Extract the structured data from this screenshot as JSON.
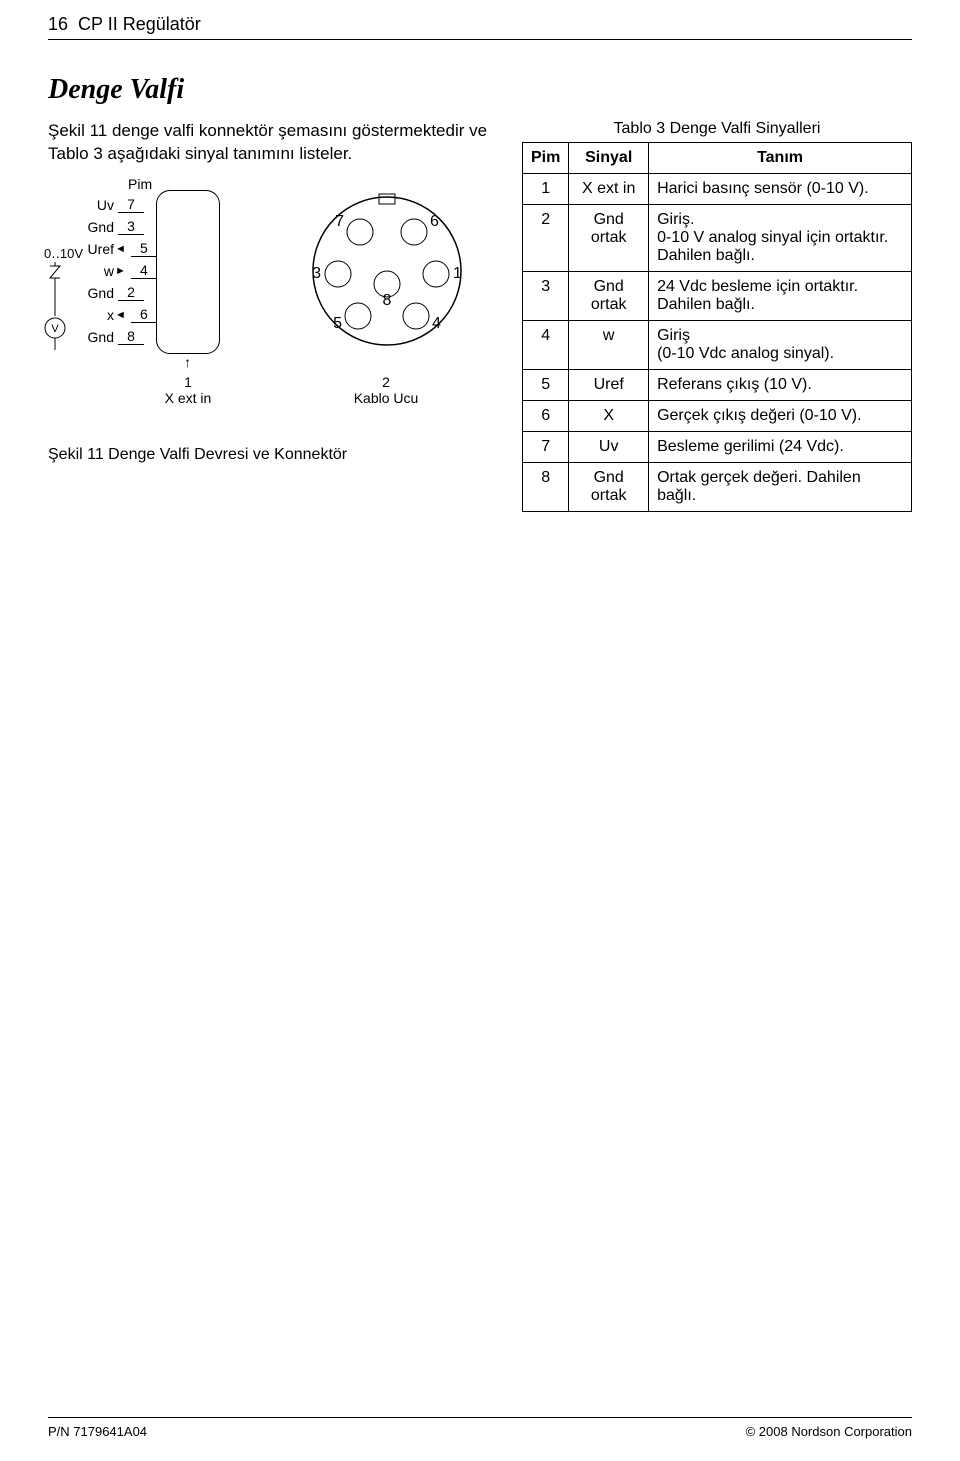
{
  "page": {
    "number": "16",
    "title": "CP II Regülatör"
  },
  "section": {
    "title": "Denge Valfi"
  },
  "intro": "Şekil 11 denge valfi konnektör şemasını göstermektedir ve Tablo 3 aşağıdaki sinyal tanımını listeler.",
  "diagram": {
    "pin_label": "Pim",
    "signals": [
      {
        "name": "Uv",
        "pin": "7"
      },
      {
        "name": "Gnd",
        "pin": "3"
      },
      {
        "name": "Uref",
        "pin": "5"
      },
      {
        "name": "w",
        "pin": "4"
      },
      {
        "name": "Gnd",
        "pin": "2"
      },
      {
        "name": "x",
        "pin": "6"
      },
      {
        "name": "Gnd",
        "pin": "8"
      }
    ],
    "src_label": "0‥10V",
    "volt_symbol": "V",
    "callout1": {
      "num": "1",
      "text": "X ext in"
    },
    "callout2": {
      "num": "2",
      "text": "Kablo Ucu"
    },
    "connector_pins": {
      "top_left": "7",
      "top_right": "6",
      "mid_left": "3",
      "mid_center": "8",
      "mid_right": "1",
      "bot_left": "5",
      "bot_right": "4"
    },
    "figure_caption": "Şekil 11   Denge Valfi Devresi ve Konnektör"
  },
  "table": {
    "caption": "Tablo 3  Denge Valfi Sinyalleri",
    "headers": {
      "pin": "Pim",
      "signal": "Sinyal",
      "desc": "Tanım"
    },
    "rows": [
      {
        "pin": "1",
        "signal": "X ext in",
        "desc": "Harici basınç sensör (0-10 V)."
      },
      {
        "pin": "2",
        "signal": "Gnd ortak",
        "desc": "Giriş.\n0-10 V analog sinyal için ortaktır.  Dahilen bağlı."
      },
      {
        "pin": "3",
        "signal": "Gnd ortak",
        "desc": "24 Vdc besleme için ortaktır. Dahilen bağlı."
      },
      {
        "pin": "4",
        "signal": "w",
        "desc": "Giriş\n(0-10 Vdc analog sinyal)."
      },
      {
        "pin": "5",
        "signal": "Uref",
        "desc": "Referans çıkış (10 V)."
      },
      {
        "pin": "6",
        "signal": "X",
        "desc": "Gerçek çıkış değeri (0-10 V)."
      },
      {
        "pin": "7",
        "signal": "Uv",
        "desc": "Besleme gerilimi (24 Vdc)."
      },
      {
        "pin": "8",
        "signal": "Gnd ortak",
        "desc": "Ortak gerçek değeri. Dahilen bağlı."
      }
    ]
  },
  "footer": {
    "left": "P/N 7179641A04",
    "right": "© 2008 Nordson Corporation"
  },
  "colors": {
    "text": "#000000",
    "border": "#000000",
    "background": "#ffffff"
  }
}
